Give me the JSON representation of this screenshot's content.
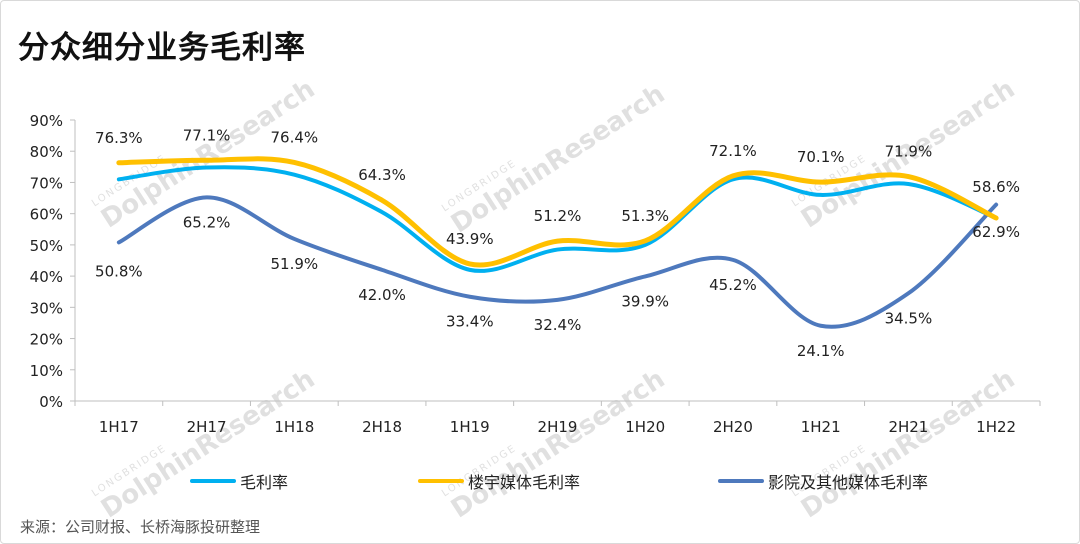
{
  "title": "分众细分业务毛利率",
  "source": "来源：公司财报、长桥海豚投研整理",
  "watermark": {
    "brand": "LONGBRIDGE",
    "name": "DolphinResearch"
  },
  "chart_data": {
    "type": "line",
    "categories": [
      "1H17",
      "2H17",
      "1H18",
      "2H18",
      "1H19",
      "2H19",
      "1H20",
      "2H20",
      "1H21",
      "2H21",
      "1H22"
    ],
    "y_ticks": [
      "0%",
      "10%",
      "20%",
      "30%",
      "40%",
      "50%",
      "60%",
      "70%",
      "80%",
      "90%"
    ],
    "ylim": [
      0,
      90
    ],
    "grid": false,
    "legend_position": "bottom",
    "series": [
      {
        "name": "毛利率",
        "color": "#00b0f0",
        "values": [
          71.0,
          74.8,
          72.5,
          60.5,
          42.0,
          48.5,
          50.0,
          71.0,
          66.0,
          69.5,
          58.6
        ],
        "labels": []
      },
      {
        "name": "楼宇媒体毛利率",
        "color": "#ffc000",
        "values": [
          76.3,
          77.1,
          76.4,
          64.3,
          43.9,
          51.2,
          51.3,
          72.1,
          70.1,
          71.9,
          58.6
        ],
        "labels": [
          "76.3%",
          "77.1%",
          "76.4%",
          "64.3%",
          "43.9%",
          "51.2%",
          "51.3%",
          "72.1%",
          "70.1%",
          "71.9%",
          "58.6%"
        ]
      },
      {
        "name": "影院及其他媒体毛利率",
        "color": "#4e79bd",
        "values": [
          50.8,
          65.2,
          51.9,
          42.0,
          33.4,
          32.4,
          39.9,
          45.2,
          24.1,
          34.5,
          62.9
        ],
        "labels": [
          "50.8%",
          "65.2%",
          "51.9%",
          "42.0%",
          "33.4%",
          "32.4%",
          "39.9%",
          "45.2%",
          "24.1%",
          "34.5%",
          "62.9%"
        ]
      }
    ]
  }
}
